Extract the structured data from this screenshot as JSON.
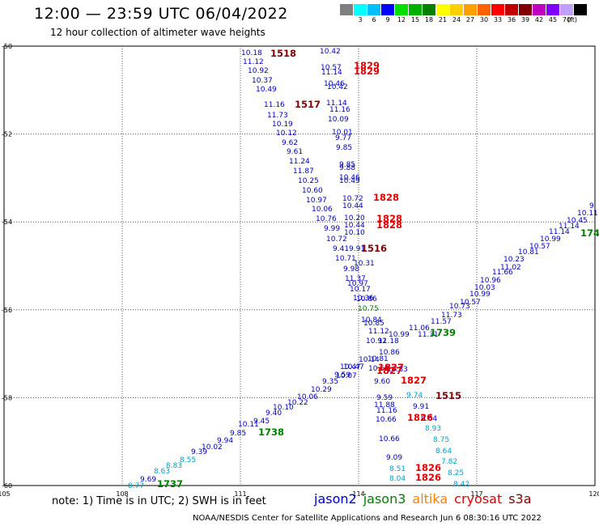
{
  "title": "12:00 — 23:59 UTC 06/04/2022",
  "subtitle": "12 hour collection of altimeter wave heights",
  "color_scale": {
    "unit": "(ft)",
    "colors": [
      "#7f7f7f",
      "#00ffff",
      "#00bfff",
      "#0000ff",
      "#00e000",
      "#00b000",
      "#008000",
      "#ffff00",
      "#ffd000",
      "#ffa000",
      "#ff6000",
      "#ff0000",
      "#c00000",
      "#800000",
      "#c000c0",
      "#8000ff",
      "#c0a0ff",
      "#000000"
    ],
    "labels": [
      "3",
      "6",
      "9",
      "12",
      "15",
      "18",
      "21",
      "24",
      "27",
      "30",
      "33",
      "36",
      "39",
      "42",
      "45",
      "70"
    ]
  },
  "map": {
    "lat_labels": [
      "-50",
      "-52",
      "-54",
      "-56",
      "-58",
      "-60"
    ],
    "lon_labels": [
      "105",
      "108",
      "111",
      "114",
      "117",
      "120"
    ],
    "lat_ticks": [
      -50,
      -52,
      -54,
      -56,
      -58,
      -60
    ],
    "lon_ticks": [
      105,
      108,
      111,
      114,
      117,
      120
    ],
    "color_legend": {
      "blue": "#0000c0",
      "teal": "#00a0c8",
      "green": "#008000",
      "darkred": "#800000",
      "red": "#e00000",
      "orange": "#ff8000",
      "brown": "#800000"
    },
    "values": [
      {
        "text": "10.18",
        "c": "blue"
      },
      {
        "text": "10.42",
        "c": "blue"
      },
      {
        "text": "11.12",
        "c": "blue"
      },
      {
        "text": "10.92",
        "c": "blue"
      },
      {
        "text": "10.37",
        "c": "blue"
      },
      {
        "text": "10.49",
        "c": "blue"
      },
      {
        "text": "11.16",
        "c": "blue"
      },
      {
        "text": "11.73",
        "c": "blue"
      },
      {
        "text": "10.19",
        "c": "blue"
      },
      {
        "text": "10.12",
        "c": "blue"
      },
      {
        "text": "9.62",
        "c": "blue"
      },
      {
        "text": "9.61",
        "c": "blue"
      },
      {
        "text": "11.24",
        "c": "blue"
      },
      {
        "text": "11.87",
        "c": "blue"
      },
      {
        "text": "10.25",
        "c": "blue"
      },
      {
        "text": "10.60",
        "c": "blue"
      },
      {
        "text": "10.97",
        "c": "blue"
      },
      {
        "text": "10.06",
        "c": "blue"
      },
      {
        "text": "10.76",
        "c": "blue"
      },
      {
        "text": "9.99",
        "c": "blue"
      },
      {
        "text": "10.72",
        "c": "blue"
      },
      {
        "text": "9.41",
        "c": "blue"
      },
      {
        "text": "10.71",
        "c": "blue"
      },
      {
        "text": "9.98",
        "c": "blue"
      },
      {
        "text": "10.57",
        "c": "blue"
      },
      {
        "text": "11.14",
        "c": "blue"
      },
      {
        "text": "10.46",
        "c": "blue"
      },
      {
        "text": "10.42",
        "c": "blue"
      },
      {
        "text": "11.14",
        "c": "blue"
      },
      {
        "text": "11.16",
        "c": "blue"
      },
      {
        "text": "10.09",
        "c": "blue"
      },
      {
        "text": "10.01",
        "c": "blue"
      },
      {
        "text": "9.77",
        "c": "blue"
      },
      {
        "text": "9.85",
        "c": "blue"
      },
      {
        "text": "9.85",
        "c": "blue"
      },
      {
        "text": "9.88",
        "c": "blue"
      },
      {
        "text": "10.46",
        "c": "blue"
      },
      {
        "text": "10.49",
        "c": "blue"
      },
      {
        "text": "10.72",
        "c": "blue"
      },
      {
        "text": "10.44",
        "c": "blue"
      },
      {
        "text": "10.20",
        "c": "blue"
      },
      {
        "text": "10.44",
        "c": "blue"
      },
      {
        "text": "10.10",
        "c": "blue"
      },
      {
        "text": "9.91",
        "c": "blue"
      },
      {
        "text": "10.31",
        "c": "blue"
      },
      {
        "text": "11.37",
        "c": "blue"
      },
      {
        "text": "10.97",
        "c": "blue"
      },
      {
        "text": "10.17",
        "c": "blue"
      },
      {
        "text": "10.86",
        "c": "blue"
      },
      {
        "text": "10.36",
        "c": "blue"
      },
      {
        "text": "10.75",
        "c": "green"
      },
      {
        "text": "10.84",
        "c": "blue"
      },
      {
        "text": "10.85",
        "c": "blue"
      },
      {
        "text": "11.12",
        "c": "blue"
      },
      {
        "text": "10.99",
        "c": "blue"
      },
      {
        "text": "11.18",
        "c": "blue"
      },
      {
        "text": "10.92",
        "c": "blue"
      },
      {
        "text": "10.86",
        "c": "blue"
      },
      {
        "text": "10.14",
        "c": "blue"
      },
      {
        "text": "10.81",
        "c": "blue"
      },
      {
        "text": "10.47",
        "c": "blue"
      },
      {
        "text": "10.69",
        "c": "blue"
      },
      {
        "text": "10.83",
        "c": "blue"
      },
      {
        "text": "9.60",
        "c": "blue"
      },
      {
        "text": "9.59",
        "c": "blue"
      },
      {
        "text": "11.88",
        "c": "blue"
      },
      {
        "text": "11.16",
        "c": "blue"
      },
      {
        "text": "10.66",
        "c": "blue"
      },
      {
        "text": "10.66",
        "c": "blue"
      },
      {
        "text": "9.09",
        "c": "blue"
      },
      {
        "text": "8.51",
        "c": "teal"
      },
      {
        "text": "8.04",
        "c": "teal"
      },
      {
        "text": "9.74",
        "c": "teal"
      },
      {
        "text": "9.91",
        "c": "blue"
      },
      {
        "text": "9.64",
        "c": "blue"
      },
      {
        "text": "8.93",
        "c": "teal"
      },
      {
        "text": "8.75",
        "c": "teal"
      },
      {
        "text": "8.64",
        "c": "teal"
      },
      {
        "text": "7.82",
        "c": "teal"
      },
      {
        "text": "8.25",
        "c": "teal"
      },
      {
        "text": "8.42",
        "c": "teal"
      },
      {
        "text": "8.77",
        "c": "teal"
      },
      {
        "text": "9.69",
        "c": "blue"
      },
      {
        "text": "8.63",
        "c": "teal"
      },
      {
        "text": "8.83",
        "c": "teal"
      },
      {
        "text": "8.55",
        "c": "teal"
      },
      {
        "text": "9.39",
        "c": "blue"
      },
      {
        "text": "10.02",
        "c": "blue"
      },
      {
        "text": "9.94",
        "c": "blue"
      },
      {
        "text": "9.85",
        "c": "blue"
      },
      {
        "text": "10.11",
        "c": "blue"
      },
      {
        "text": "9.45",
        "c": "blue"
      },
      {
        "text": "9.40",
        "c": "blue"
      },
      {
        "text": "10.10",
        "c": "blue"
      },
      {
        "text": "10.22",
        "c": "blue"
      },
      {
        "text": "10.06",
        "c": "blue"
      },
      {
        "text": "10.29",
        "c": "blue"
      },
      {
        "text": "9.35",
        "c": "blue"
      },
      {
        "text": "9.59",
        "c": "blue"
      },
      {
        "text": "10.07",
        "c": "blue"
      },
      {
        "text": "10.47",
        "c": "blue"
      },
      {
        "text": "11.06",
        "c": "blue"
      },
      {
        "text": "11.31",
        "c": "blue"
      },
      {
        "text": "11.57",
        "c": "blue"
      },
      {
        "text": "11.73",
        "c": "blue"
      },
      {
        "text": "10.73",
        "c": "blue"
      },
      {
        "text": "10.57",
        "c": "blue"
      },
      {
        "text": "10.99",
        "c": "blue"
      },
      {
        "text": "10.03",
        "c": "blue"
      },
      {
        "text": "10.96",
        "c": "blue"
      },
      {
        "text": "11.66",
        "c": "blue"
      },
      {
        "text": "11.02",
        "c": "blue"
      },
      {
        "text": "10.23",
        "c": "blue"
      },
      {
        "text": "10.81",
        "c": "blue"
      },
      {
        "text": "10.57",
        "c": "blue"
      },
      {
        "text": "10.99",
        "c": "blue"
      },
      {
        "text": "11.14",
        "c": "blue"
      },
      {
        "text": "11.14",
        "c": "blue"
      },
      {
        "text": "10.45",
        "c": "blue"
      },
      {
        "text": "10.11",
        "c": "blue"
      },
      {
        "text": "9",
        "c": "blue"
      }
    ],
    "times": [
      {
        "text": "1518",
        "c": "darkred"
      },
      {
        "text": "1517",
        "c": "darkred"
      },
      {
        "text": "1516",
        "c": "darkred"
      },
      {
        "text": "1515",
        "c": "darkred"
      },
      {
        "text": "1829",
        "c": "red"
      },
      {
        "text": "1829",
        "c": "red"
      },
      {
        "text": "1828",
        "c": "red"
      },
      {
        "text": "1828",
        "c": "red"
      },
      {
        "text": "1828",
        "c": "red"
      },
      {
        "text": "1827",
        "c": "red"
      },
      {
        "text": "1827",
        "c": "red"
      },
      {
        "text": "1827",
        "c": "red"
      },
      {
        "text": "1826",
        "c": "red"
      },
      {
        "text": "1826",
        "c": "red"
      },
      {
        "text": "1826",
        "c": "red"
      },
      {
        "text": "1739",
        "c": "green"
      },
      {
        "text": "1738",
        "c": "green"
      },
      {
        "text": "1737",
        "c": "green"
      },
      {
        "text": "174",
        "c": "green"
      }
    ]
  },
  "note": "note: 1) Time is in UTC; 2) SWH is in feet",
  "satellites": [
    {
      "name": "jason2",
      "color": "#0000c0"
    },
    {
      "name": "jason3",
      "color": "#008000"
    },
    {
      "name": "altika",
      "color": "#ff8000"
    },
    {
      "name": "cryosat",
      "color": "#e00000"
    },
    {
      "name": "s3a",
      "color": "#800000"
    }
  ],
  "credit": "NOAA/NESDIS Center for Satellite Applications and Research    Jun  6 08:30:16 UTC 2022"
}
